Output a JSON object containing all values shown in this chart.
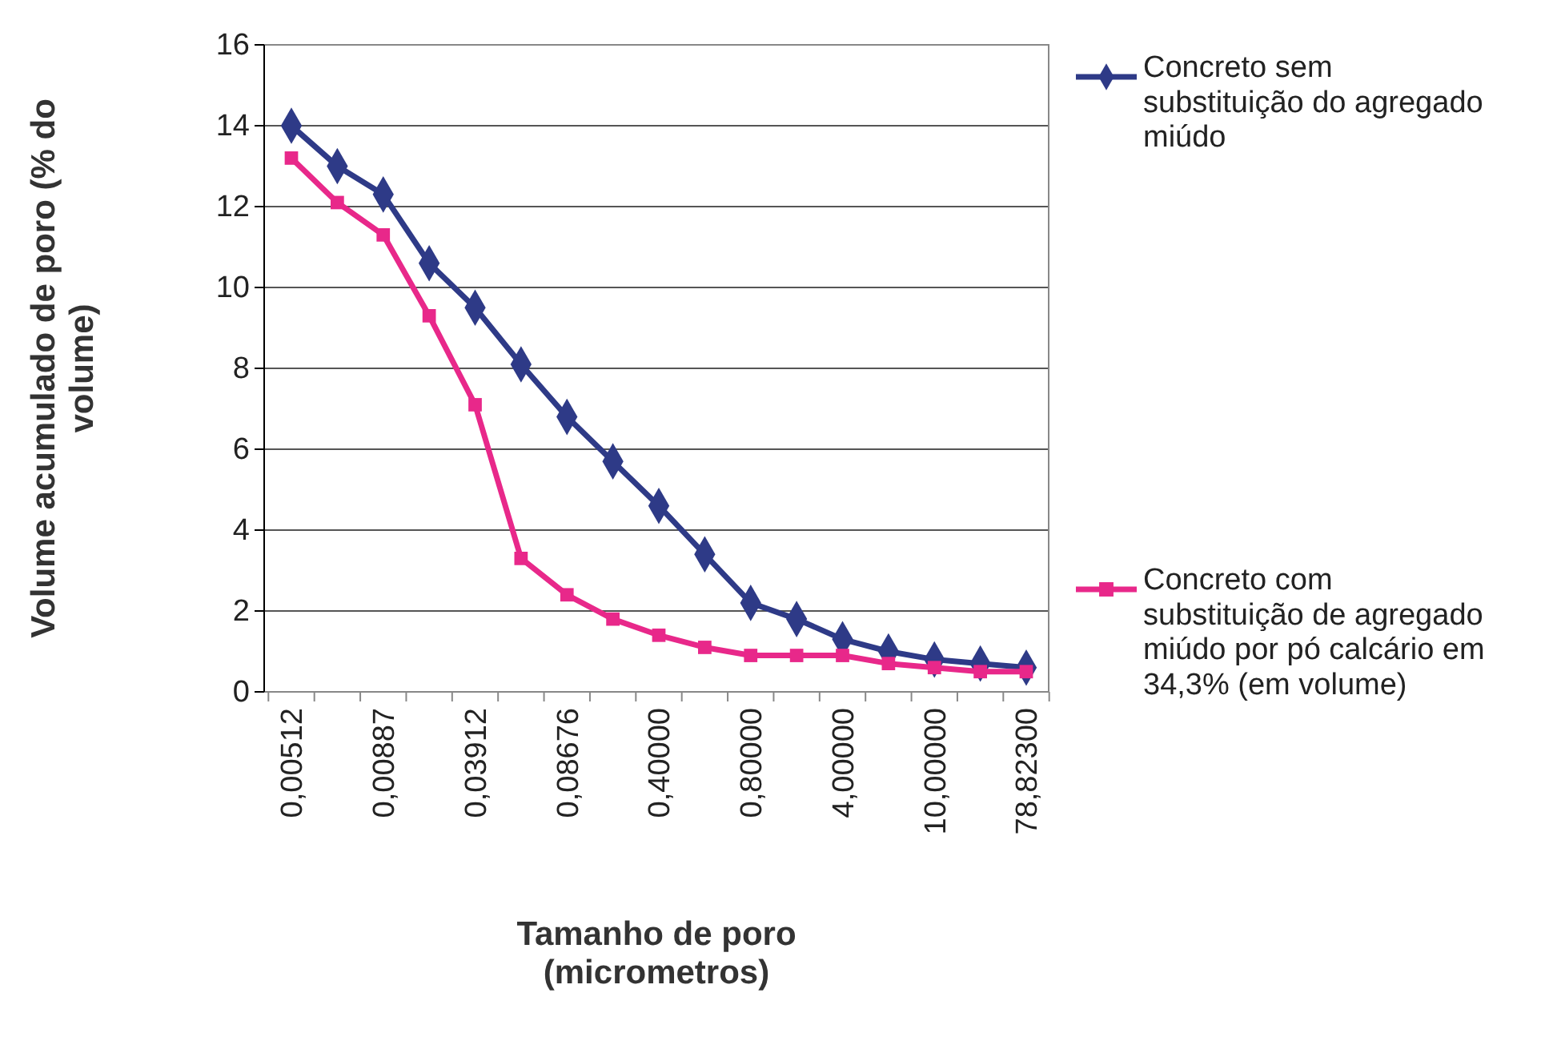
{
  "chart_data": {
    "type": "line",
    "xlabel": "Tamanho de poro (micrometros)",
    "ylabel": "Volume acumulado de poro (% do volume)",
    "categories": [
      "0,00512",
      null,
      "0,00887",
      null,
      "0,03912",
      null,
      "0,08676",
      null,
      "0,40000",
      null,
      "0,80000",
      null,
      "4,00000",
      null,
      "10,00000",
      null,
      "78,82300"
    ],
    "series": [
      {
        "name": "Concreto sem substituição do agregado miúdo",
        "color": "#2e3a87",
        "marker": "diamond",
        "values": [
          14.0,
          13.0,
          12.3,
          10.6,
          9.5,
          8.1,
          6.8,
          5.7,
          4.6,
          3.4,
          2.2,
          1.8,
          1.3,
          1.0,
          0.8,
          0.7,
          0.6
        ]
      },
      {
        "name": "Concreto com substituição de agregado miúdo por pó calcário em 34,3% (em volume)",
        "color": "#e8288a",
        "marker": "square",
        "values": [
          13.2,
          12.1,
          11.3,
          9.3,
          7.1,
          3.3,
          2.4,
          1.8,
          1.4,
          1.1,
          0.9,
          0.9,
          0.9,
          0.7,
          0.6,
          0.5,
          0.5
        ]
      }
    ],
    "ylim": [
      0,
      16
    ],
    "yticks": [
      0,
      2,
      4,
      6,
      8,
      10,
      12,
      14,
      16
    ],
    "grid": "y",
    "legend": "right",
    "line_style": "solid"
  }
}
